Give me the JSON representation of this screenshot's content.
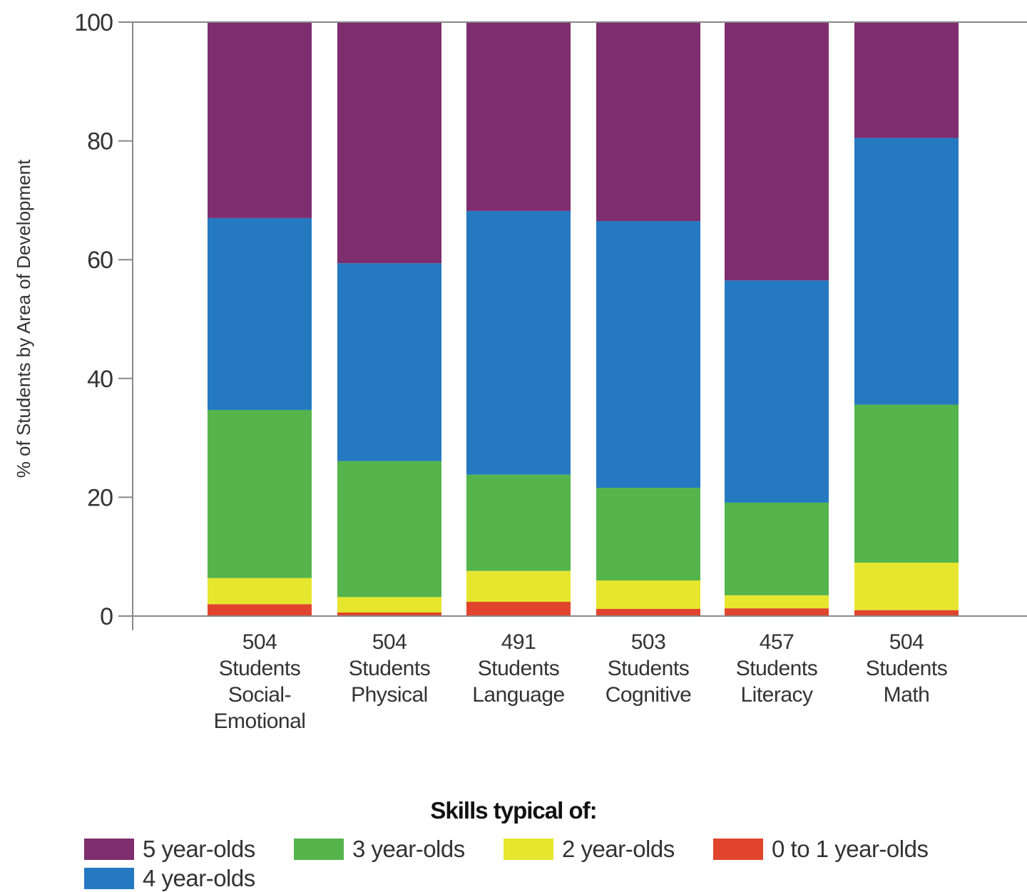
{
  "chart_data": {
    "type": "bar",
    "stacked": true,
    "ylabel": "% of Students by Area of Development",
    "ylim": [
      0,
      100
    ],
    "yticks": [
      0,
      20,
      40,
      60,
      80,
      100
    ],
    "grid": false,
    "categories": [
      [
        "504",
        "Students",
        "Social-",
        "Emotional"
      ],
      [
        "504",
        "Students",
        "Physical"
      ],
      [
        "491",
        "Students",
        "Language"
      ],
      [
        "503",
        "Students",
        "Cognitive"
      ],
      [
        "457",
        "Students",
        "Literacy"
      ],
      [
        "504",
        "Students",
        "Math"
      ]
    ],
    "series": [
      {
        "name": "0 to 1 year-olds",
        "color": "#e0442c",
        "values": [
          2.0,
          0.6,
          2.4,
          1.2,
          1.3,
          1.0
        ]
      },
      {
        "name": "2 year-olds",
        "color": "#e6e62e",
        "values": [
          4.4,
          2.6,
          5.2,
          4.8,
          2.2,
          8.0
        ]
      },
      {
        "name": "3 year-olds",
        "color": "#55b44c",
        "values": [
          28.3,
          22.9,
          16.2,
          15.6,
          15.6,
          26.6
        ]
      },
      {
        "name": "4 year-olds",
        "color": "#2479c1",
        "values": [
          32.3,
          33.3,
          44.4,
          44.9,
          37.4,
          44.9
        ]
      },
      {
        "name": "5 year-olds",
        "color": "#7e2d6e",
        "values": [
          33.0,
          40.6,
          31.8,
          33.5,
          43.5,
          19.5
        ]
      }
    ],
    "legend": {
      "title": "Skills typical of:",
      "placement": "bottom",
      "order": [
        "5 year-olds",
        "3 year-olds",
        "2 year-olds",
        "0 to 1 year-olds",
        "4 year-olds"
      ]
    }
  }
}
